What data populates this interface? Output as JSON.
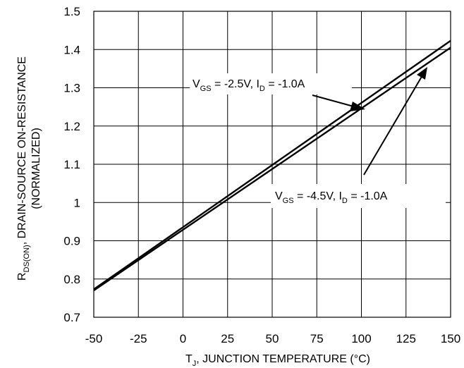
{
  "chart_data": {
    "type": "line",
    "x_ticks": [
      "-50",
      "-25",
      "0",
      "25",
      "50",
      "75",
      "100",
      "125",
      "150"
    ],
    "y_ticks": [
      "0.7",
      "0.8",
      "0.9",
      "1",
      "1.1",
      "1.2",
      "1.3",
      "1.4",
      "1.5"
    ],
    "xlim": [
      -50,
      150
    ],
    "ylim": [
      0.7,
      1.5
    ],
    "grid": true,
    "xlabel": {
      "prefix": "T",
      "sub": "J",
      "rest": ", JUNCTION TEMPERATURE (°C)"
    },
    "ylabel": {
      "line1_prefix": "R",
      "line1_sub": "DS(ON)",
      "line1_rest": ", DRAIN-SOURCE ON-RESISTANCE",
      "line2": "(NORMALIZED)"
    },
    "series": [
      {
        "x": [
          -50,
          150
        ],
        "y": [
          0.77,
          1.405
        ],
        "color": "#000000"
      },
      {
        "x": [
          -50,
          150
        ],
        "y": [
          0.773,
          1.423
        ],
        "color": "#000000"
      }
    ],
    "annotations": [
      {
        "v": "V",
        "v_sub": "GS",
        "mid": " = -2.5V, I",
        "i_sub": "D",
        "end": " = -1.0A"
      },
      {
        "v": "V",
        "v_sub": "GS",
        "mid": " = -4.5V, I",
        "i_sub": "D",
        "end": " = -1.0A"
      }
    ]
  }
}
